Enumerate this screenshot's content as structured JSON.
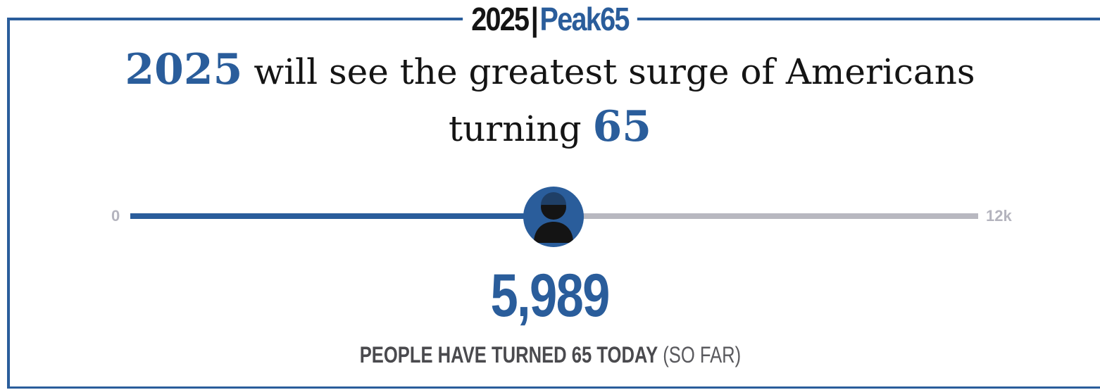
{
  "header": {
    "year": "2025",
    "separator": "|",
    "brand": "Peak65"
  },
  "headline": {
    "highlight_year": "2025",
    "text_main": " will see the greatest surge of Americans",
    "text_line2": "turning ",
    "highlight_age": "65"
  },
  "progress": {
    "min_label": "0",
    "max_label": "12k",
    "min_value": 0,
    "max_value": 12000,
    "current_value": 5989,
    "thumb_icon": "person-icon"
  },
  "counter": {
    "value": "5,989",
    "caption_strong": "PEOPLE HAVE TURNED 65 TODAY",
    "caption_light": " (SO FAR)"
  },
  "colors": {
    "accent": "#2a5d9b",
    "text_dark": "#141414",
    "track_gray": "#b8b8c0",
    "tick_gray": "#b4b4be",
    "caption_gray": "#4a4a4e"
  }
}
